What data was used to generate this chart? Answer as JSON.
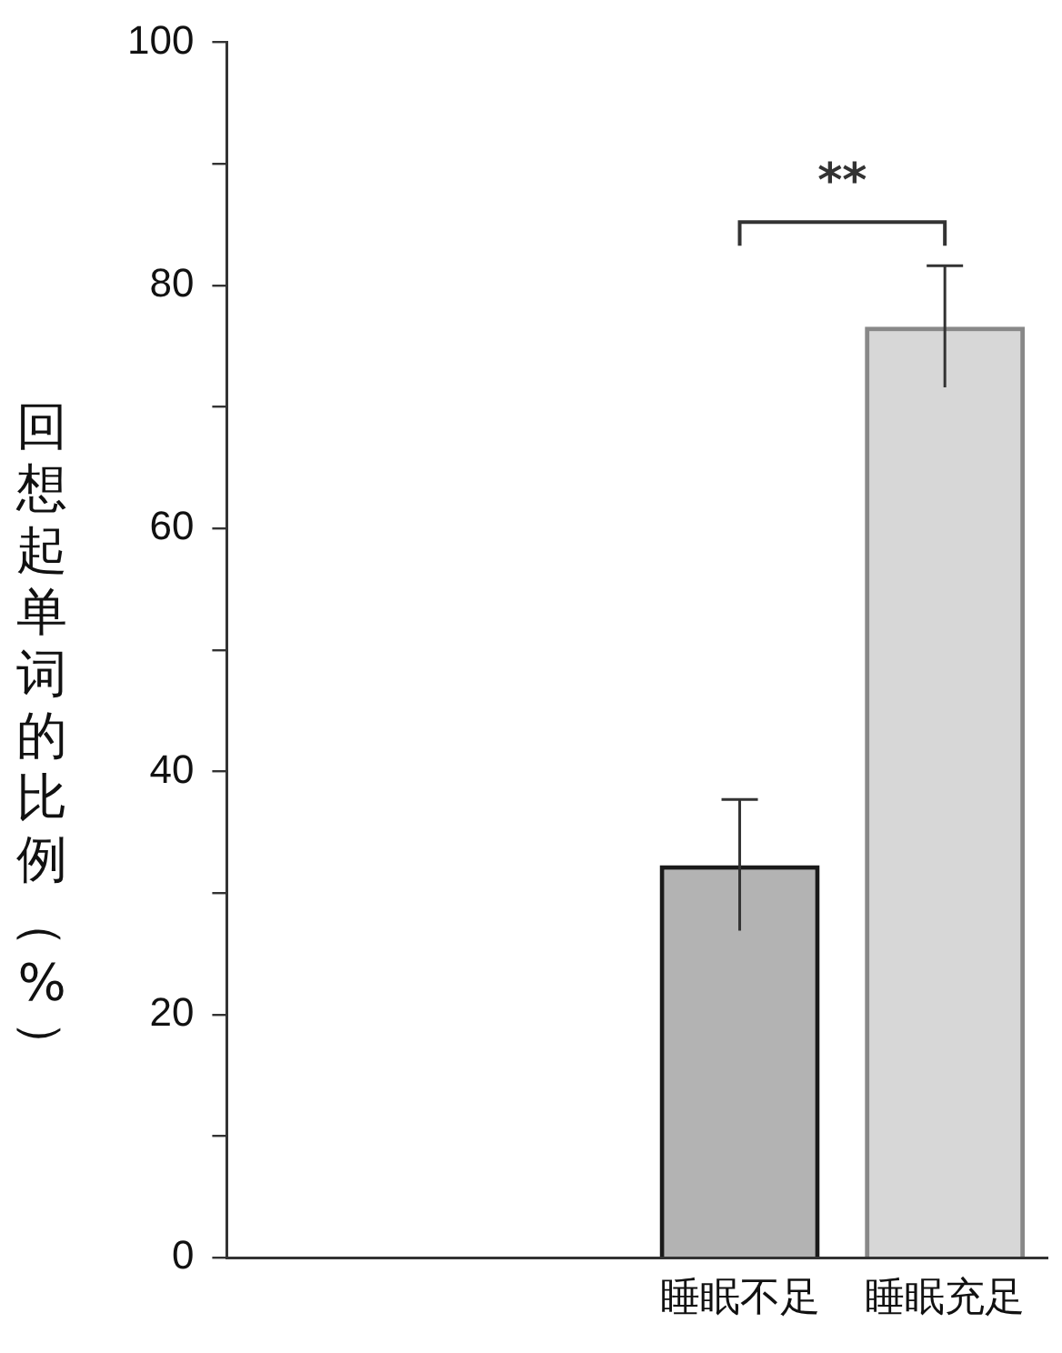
{
  "chart_data": {
    "type": "bar",
    "ylabel": "回想起单词的比例（%）",
    "categories": [
      null,
      null,
      "睡眠不足",
      "睡眠充足"
    ],
    "values": [
      null,
      null,
      32.3,
      76.6
    ],
    "colors": [
      "#1a1a1a",
      "#1a1a1a",
      "#1a1a1a",
      "#888888"
    ],
    "errors": [
      null,
      null,
      5.4,
      5.0
    ],
    "ylim": [
      0,
      100
    ],
    "yticks": [
      0,
      {
        "value": 10,
        "label": null
      },
      20,
      {
        "value": 30,
        "label": null
      },
      40,
      {
        "value": 50,
        "label": null
      },
      60,
      {
        "value": 70,
        "label": null
      },
      80,
      {
        "value": 90,
        "label": null
      },
      100
    ],
    "annotations": [
      "**"
    ],
    "grid": false,
    "legend": false
  }
}
